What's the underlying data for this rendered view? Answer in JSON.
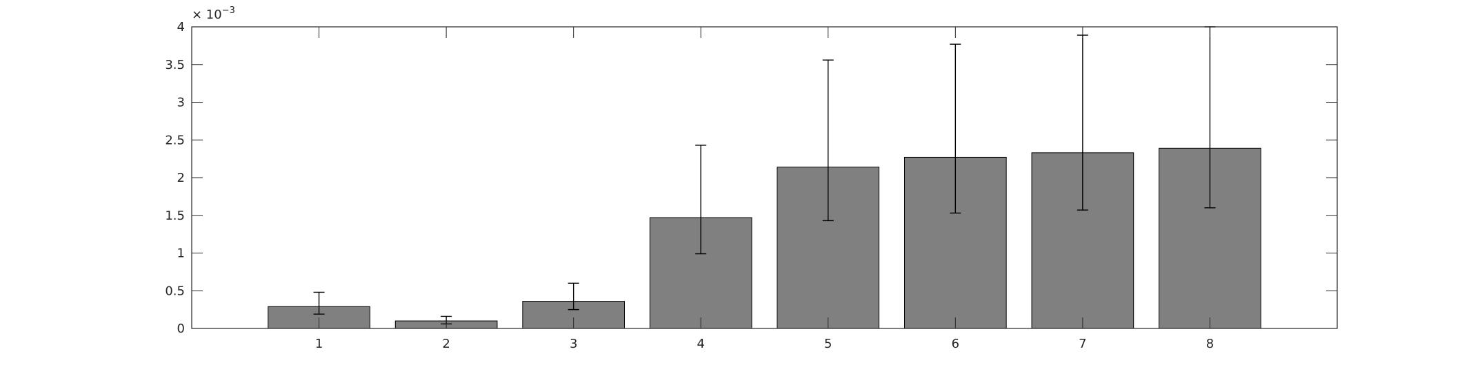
{
  "chart_data": {
    "type": "bar",
    "title": "",
    "xlabel": "",
    "ylabel": "",
    "categories": [
      "1",
      "2",
      "3",
      "4",
      "5",
      "6",
      "7",
      "8"
    ],
    "values": [
      0.00029,
      0.0001,
      0.00036,
      0.00147,
      0.00214,
      0.00227,
      0.00233,
      0.00239
    ],
    "error_low": [
      0.00019,
      6e-05,
      0.00025,
      0.00099,
      0.00143,
      0.00153,
      0.00157,
      0.0016
    ],
    "error_high": [
      0.00048,
      0.00016,
      0.0006,
      0.00243,
      0.00356,
      0.00377,
      0.00389,
      0.004
    ],
    "ylim": [
      0,
      0.004
    ],
    "xlim": [
      0,
      9
    ],
    "yticks": [
      0,
      0.5,
      1,
      1.5,
      2,
      2.5,
      3,
      3.5,
      4
    ],
    "ytick_labels": [
      "0",
      "0.5",
      "1",
      "1.5",
      "2",
      "2.5",
      "3",
      "3.5",
      "4"
    ],
    "y_exponent_label": {
      "base": "× 10",
      "exponent": "−3"
    },
    "bar_color": "#808080",
    "bar_edge_color": "#000000",
    "axis_color": "#262626",
    "grid": false,
    "legend": "none"
  }
}
